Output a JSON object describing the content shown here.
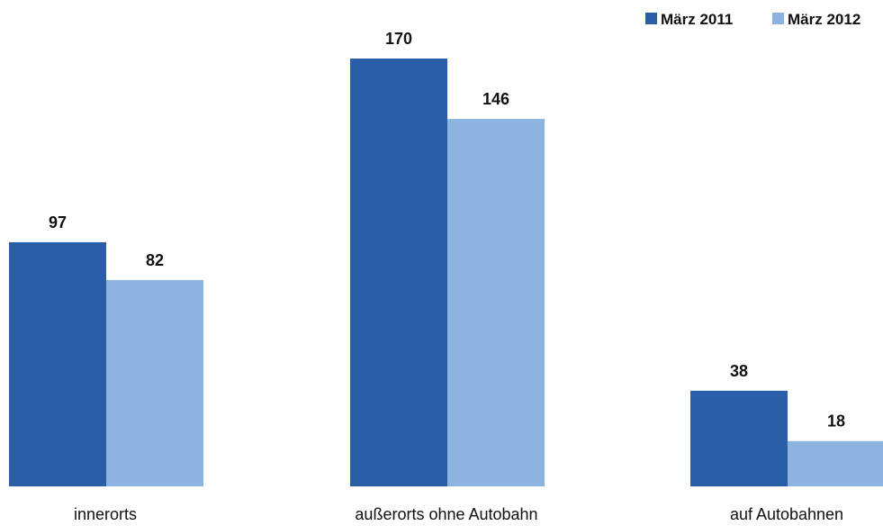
{
  "chart_data": {
    "type": "bar",
    "categories": [
      "innerorts",
      "außerorts ohne Autobahn",
      "auf Autobahnen"
    ],
    "series": [
      {
        "name": "März 2011",
        "values": [
          97,
          170,
          38
        ],
        "color": "#2a5fa8"
      },
      {
        "name": "März 2012",
        "values": [
          82,
          146,
          18
        ],
        "color": "#8db4e0"
      }
    ],
    "ylim": [
      0,
      170
    ],
    "grid": false,
    "legend": "top-right"
  }
}
